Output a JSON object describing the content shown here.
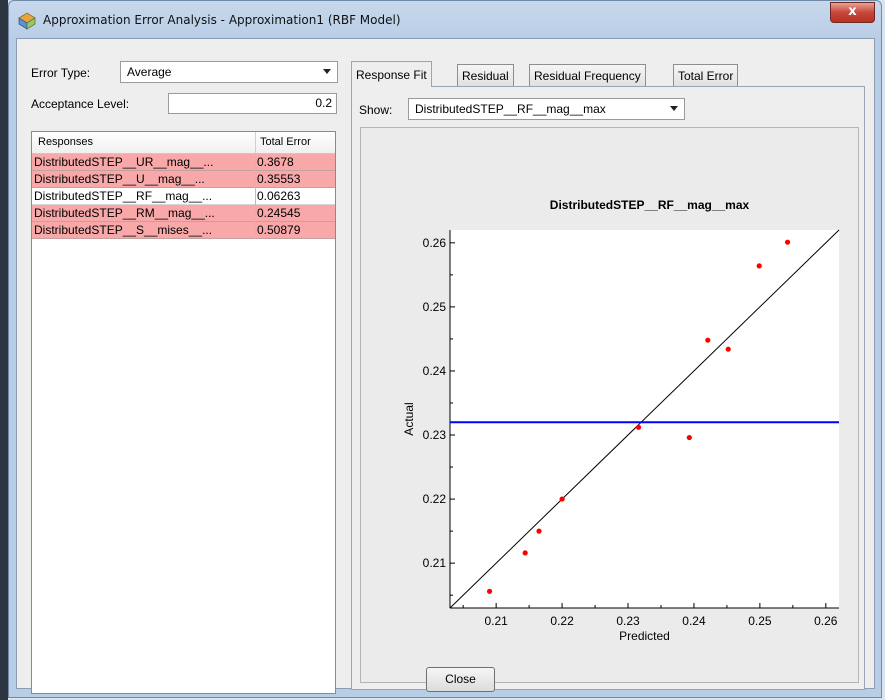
{
  "window": {
    "title": "Approximation Error Analysis - Approximation1 (RBF Model)",
    "close_glyph": "x"
  },
  "left": {
    "error_type_label": "Error Type:",
    "error_type_value": "Average",
    "acceptance_label": "Acceptance Level:",
    "acceptance_value": "0.2",
    "table": {
      "headers": [
        "Responses",
        "Total Error"
      ],
      "rows": [
        {
          "name": "DistributedSTEP__UR__mag__...",
          "error": "0.3678",
          "status": "bad"
        },
        {
          "name": "DistributedSTEP__U__mag__...",
          "error": "0.35553",
          "status": "bad"
        },
        {
          "name": "DistributedSTEP__RF__mag__...",
          "error": "0.06263",
          "status": "ok"
        },
        {
          "name": "DistributedSTEP__RM__mag__...",
          "error": "0.24545",
          "status": "bad"
        },
        {
          "name": "DistributedSTEP__S__mises__...",
          "error": "0.50879",
          "status": "bad"
        }
      ]
    }
  },
  "tabs": [
    "Response Fit",
    "Residual",
    "Residual Frequency",
    "Total Error"
  ],
  "show_label": "Show:",
  "show_value": "DistributedSTEP__RF__mag__max",
  "close_label": "Close",
  "colors": {
    "bad_row": "#f8a8a8",
    "point": "#ff0000",
    "threshold_line": "#0000ff",
    "fit_line": "#000000"
  },
  "chart_data": {
    "type": "scatter",
    "title": "DistributedSTEP__RF__mag__max",
    "xlabel": "Predicted",
    "ylabel": "Actual",
    "xlim": [
      0.203,
      0.262
    ],
    "ylim": [
      0.203,
      0.262
    ],
    "x_ticks": [
      "0.21",
      "0.22",
      "0.23",
      "0.24",
      "0.25",
      "0.26"
    ],
    "y_ticks": [
      "0.21",
      "0.22",
      "0.23",
      "0.24",
      "0.25",
      "0.26"
    ],
    "points": [
      {
        "x": 0.209,
        "y": 0.2056
      },
      {
        "x": 0.2144,
        "y": 0.2116
      },
      {
        "x": 0.2165,
        "y": 0.215
      },
      {
        "x": 0.22,
        "y": 0.22
      },
      {
        "x": 0.2316,
        "y": 0.2312
      },
      {
        "x": 0.2393,
        "y": 0.2296
      },
      {
        "x": 0.2421,
        "y": 0.2448
      },
      {
        "x": 0.2452,
        "y": 0.2434
      },
      {
        "x": 0.2499,
        "y": 0.2564
      },
      {
        "x": 0.2542,
        "y": 0.2601
      }
    ],
    "diagonal_fit": true,
    "horizontal_line_y": 0.232
  }
}
